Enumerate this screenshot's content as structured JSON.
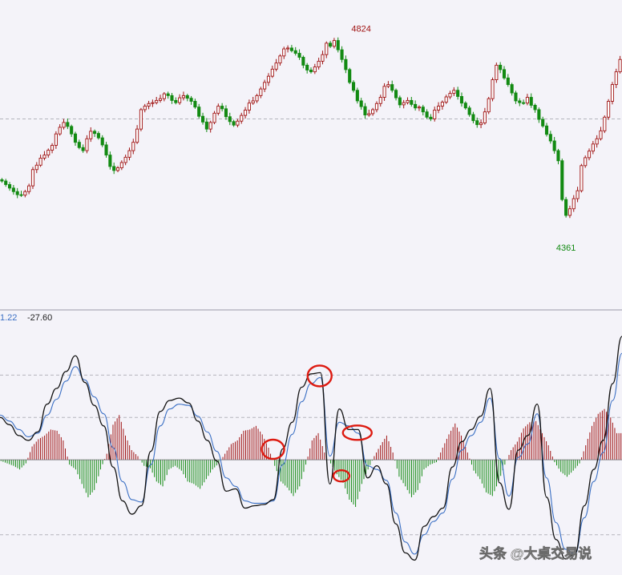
{
  "chart_data": [
    {
      "type": "candlestick",
      "title": "",
      "annotations": {
        "high": {
          "label": "4824",
          "value": 4824,
          "index": 93
        },
        "low": {
          "label": "4361",
          "value": 4361,
          "index": 146
        }
      },
      "ylim": [
        4205,
        4905
      ],
      "ref_line": 4635,
      "up_color": "#a01414",
      "down_color": "#128a12",
      "closes": [
        4494,
        4486,
        4478,
        4470,
        4463,
        4462,
        4470,
        4483,
        4520,
        4530,
        4546,
        4553,
        4564,
        4575,
        4601,
        4616,
        4627,
        4618,
        4601,
        4582,
        4570,
        4563,
        4590,
        4607,
        4602,
        4592,
        4576,
        4553,
        4527,
        4518,
        4524,
        4536,
        4548,
        4563,
        4582,
        4612,
        4656,
        4664,
        4670,
        4672,
        4677,
        4681,
        4692,
        4688,
        4677,
        4672,
        4683,
        4688,
        4682,
        4675,
        4662,
        4641,
        4628,
        4612,
        4627,
        4648,
        4664,
        4658,
        4640,
        4629,
        4621,
        4630,
        4643,
        4655,
        4671,
        4676,
        4688,
        4703,
        4718,
        4732,
        4748,
        4762,
        4778,
        4794,
        4796,
        4790,
        4784,
        4775,
        4757,
        4746,
        4742,
        4753,
        4766,
        4781,
        4807,
        4800,
        4813,
        4792,
        4770,
        4747,
        4718,
        4700,
        4676,
        4663,
        4644,
        4647,
        4656,
        4670,
        4684,
        4709,
        4713,
        4700,
        4683,
        4667,
        4672,
        4677,
        4668,
        4660,
        4662,
        4651,
        4639,
        4635,
        4655,
        4664,
        4673,
        4685,
        4693,
        4700,
        4686,
        4671,
        4660,
        4645,
        4631,
        4622,
        4626,
        4651,
        4681,
        4724,
        4757,
        4747,
        4728,
        4713,
        4694,
        4676,
        4672,
        4671,
        4684,
        4666,
        4656,
        4634,
        4619,
        4600,
        4585,
        4563,
        4540,
        4452,
        4416,
        4431,
        4454,
        4472,
        4529,
        4547,
        4562,
        4578,
        4590,
        4608,
        4639,
        4675,
        4713,
        4742,
        4770
      ]
    },
    {
      "type": "macd",
      "legend": [
        "1.22",
        "-27.60"
      ],
      "legend_colors": [
        "#3a6fc4",
        "#222222"
      ],
      "dif_color": "#111111",
      "dea_color": "#3a6fc4",
      "hist_up_color": "#a01414",
      "hist_down_color": "#128a12",
      "circle_color": "#dd1a10",
      "ylim": [
        -90,
        112
      ],
      "dashed_levels": [
        70,
        35,
        -62
      ],
      "dif": [
        35,
        29,
        20,
        16,
        23,
        46,
        59,
        73,
        86,
        64,
        45,
        28,
        -6,
        -34,
        -45,
        -38,
        7,
        40,
        49,
        51,
        47,
        32,
        16,
        -1,
        -26,
        -24,
        -40,
        -38,
        -37,
        -33,
        9,
        31,
        60,
        71,
        72,
        -20,
        42,
        25,
        25,
        -15,
        -5,
        -20,
        -53,
        -77,
        -83,
        -55,
        -47,
        -40,
        -6,
        15,
        25,
        36,
        59,
        -19,
        -41,
        8,
        20,
        46,
        -31,
        -66,
        -82,
        -78,
        -38,
        -8,
        16,
        63,
        102
      ],
      "dea": [
        37,
        32,
        25,
        19,
        22,
        37,
        50,
        65,
        77,
        66,
        52,
        38,
        10,
        -18,
        -33,
        -35,
        -4,
        28,
        42,
        46,
        45,
        36,
        23,
        7,
        -15,
        -22,
        -34,
        -36,
        -36,
        -34,
        -4,
        21,
        48,
        63,
        68,
        3,
        31,
        28,
        22,
        -5,
        -8,
        -17,
        -44,
        -68,
        -78,
        -62,
        -51,
        -44,
        -16,
        8,
        20,
        31,
        51,
        1,
        -30,
        2,
        13,
        38,
        -15,
        -52,
        -74,
        -78,
        -48,
        -18,
        6,
        49,
        88
      ],
      "hist": [
        -1,
        -3,
        -5,
        -8,
        -3,
        11,
        17,
        20,
        25,
        24,
        16,
        -4,
        -8,
        -20,
        -31,
        -25,
        -8,
        5,
        29,
        37,
        20,
        8,
        3,
        -5,
        -7,
        -18,
        -22,
        -8,
        -5,
        -9,
        -18,
        -20,
        -24,
        -16,
        -8,
        -3,
        5,
        13,
        16,
        24,
        25,
        28,
        21,
        10,
        -5,
        -18,
        -23,
        -30,
        -22,
        -4,
        16,
        22,
        6,
        -3,
        -12,
        -19,
        -33,
        -39,
        -20,
        -8,
        3,
        12,
        20,
        6,
        -14,
        -22,
        -31,
        -25,
        -8,
        -4,
        -2,
        10,
        21,
        30,
        20,
        6,
        -9,
        -16,
        -27,
        -30,
        -18,
        -4,
        8,
        15,
        26,
        31,
        32,
        22,
        12,
        -2,
        -10,
        -14,
        -9,
        -3,
        12,
        28,
        38,
        42,
        35,
        22
      ]
    }
  ],
  "watermark": "头条 @大桌交易说"
}
